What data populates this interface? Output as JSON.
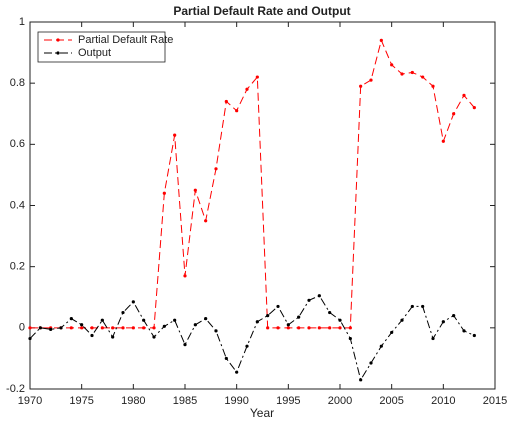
{
  "chart_data": {
    "type": "line",
    "title": "Partial Default Rate and Output",
    "xlabel": "Year",
    "x": [
      1970,
      1971,
      1972,
      1973,
      1974,
      1975,
      1976,
      1977,
      1978,
      1979,
      1980,
      1981,
      1982,
      1983,
      1984,
      1985,
      1986,
      1987,
      1988,
      1989,
      1990,
      1991,
      1992,
      1993,
      1994,
      1995,
      1996,
      1997,
      1998,
      1999,
      2000,
      2001,
      2002,
      2003,
      2004,
      2005,
      2006,
      2007,
      2008,
      2009,
      2010,
      2011,
      2012,
      2013
    ],
    "series": [
      {
        "name": "Partial Default Rate",
        "color": "#ff0000",
        "linestyle": "--",
        "values": [
          0,
          0,
          0,
          0,
          0,
          0,
          0,
          0,
          0,
          0,
          0,
          0,
          0,
          0.44,
          0.63,
          0.17,
          0.45,
          0.35,
          0.52,
          0.74,
          0.71,
          0.78,
          0.82,
          0,
          0,
          0,
          0,
          0,
          0,
          0,
          0,
          0,
          0.79,
          0.81,
          0.94,
          0.86,
          0.83,
          0.835,
          0.82,
          0.79,
          0.61,
          0.7,
          0.76,
          0.72
        ]
      },
      {
        "name": "Output",
        "color": "#000000",
        "linestyle": "-.",
        "values": [
          -0.035,
          0.0,
          -0.005,
          0.0,
          0.03,
          0.01,
          -0.025,
          0.025,
          -0.03,
          0.05,
          0.085,
          0.025,
          -0.03,
          0.005,
          0.025,
          -0.055,
          0.01,
          0.03,
          -0.01,
          -0.1,
          -0.145,
          -0.06,
          0.02,
          0.04,
          0.07,
          0.01,
          0.035,
          0.09,
          0.105,
          0.05,
          0.025,
          -0.035,
          -0.17,
          -0.115,
          -0.06,
          -0.015,
          0.025,
          0.07,
          0.07,
          -0.035,
          0.02,
          0.04,
          -0.01,
          -0.025
        ]
      }
    ],
    "xlim": [
      1970,
      2015
    ],
    "xticks": [
      1970,
      1975,
      1980,
      1985,
      1990,
      1995,
      2000,
      2005,
      2010,
      2015
    ],
    "ylim": [
      -0.2,
      1
    ],
    "yticks": [
      -0.2,
      0,
      0.2,
      0.4,
      0.6,
      0.8,
      1
    ],
    "legend": "upper left"
  }
}
